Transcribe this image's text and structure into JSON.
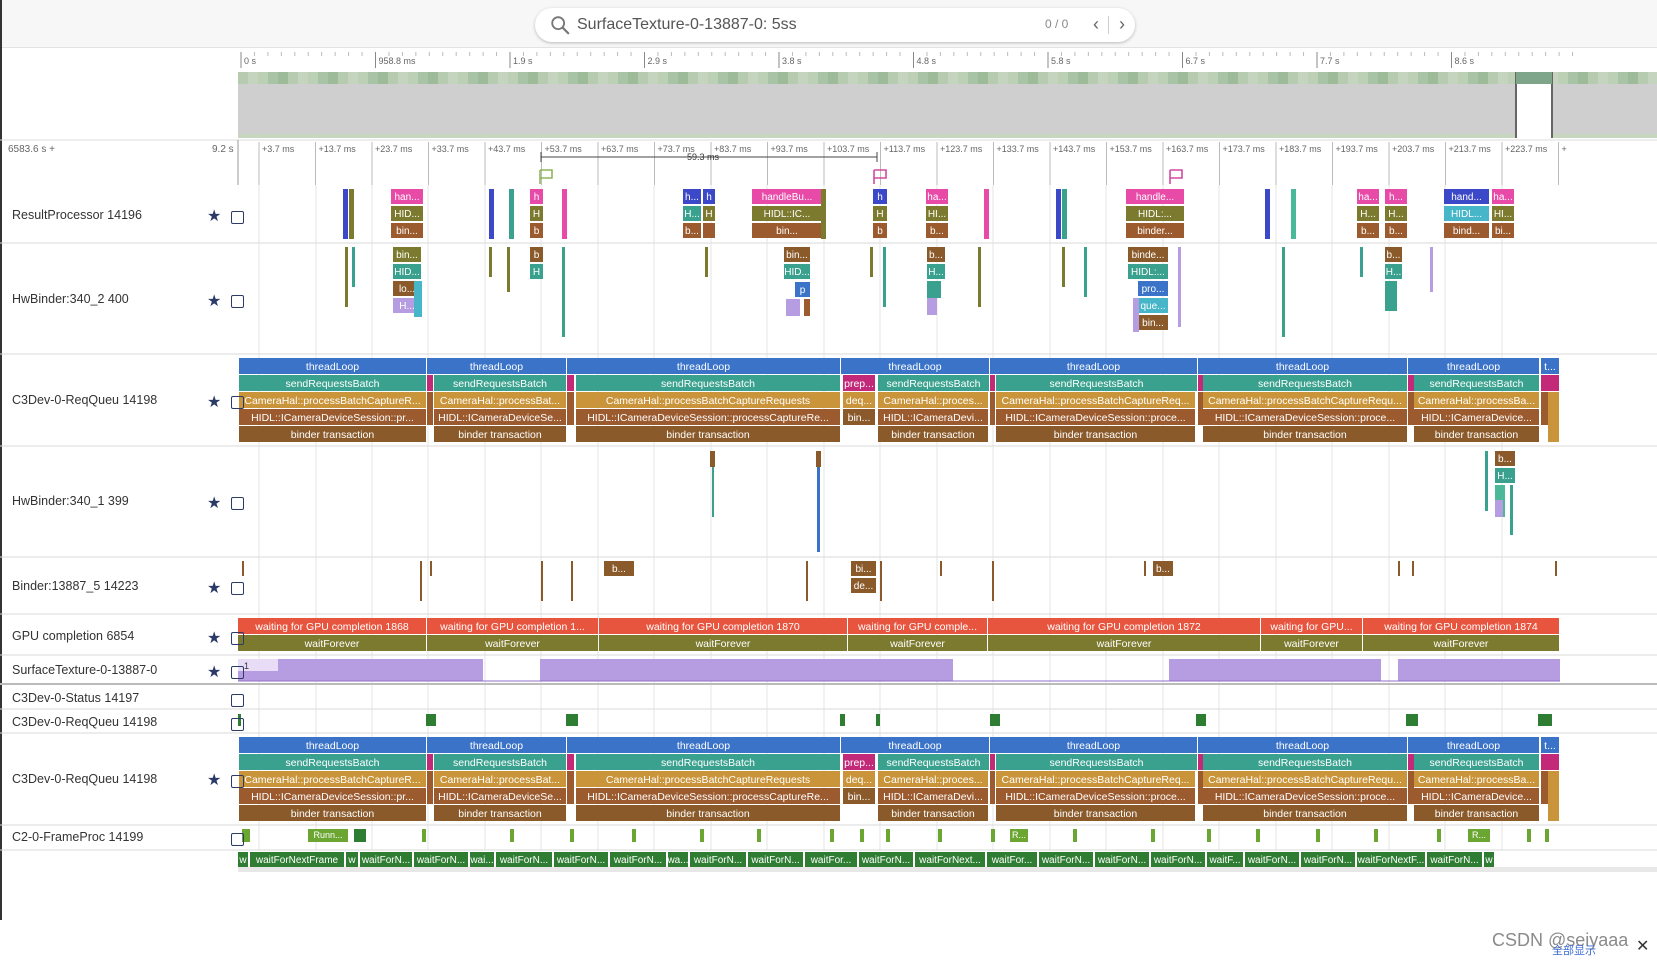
{
  "search": {
    "value": "SurfaceTexture-0-13887-0: 5ss",
    "count": "0 / 0"
  },
  "overview": {
    "ticks": [
      "0 s",
      "958.8 ms",
      "1.9 s",
      "2.9 s",
      "3.8 s",
      "4.8 s",
      "5.8 s",
      "6.7 s",
      "7.7 s",
      "8.6 s"
    ]
  },
  "timeaxis": {
    "left_label": "6583.6 s +",
    "right_label": "9.2 s",
    "ticks": [
      "+3.7 ms",
      "+13.7 ms",
      "+23.7 ms",
      "+33.7 ms",
      "+43.7 ms",
      "+53.7 ms",
      "+63.7 ms",
      "+73.7 ms",
      "+83.7 ms",
      "+93.7 ms",
      "+103.7 ms",
      "+113.7 ms",
      "+123.7 ms",
      "+133.7 ms",
      "+143.7 ms",
      "+153.7 ms",
      "+163.7 ms",
      "+173.7 ms",
      "+183.7 ms",
      "+193.7 ms",
      "+203.7 ms",
      "+213.7 ms",
      "+223.7 ms",
      "+"
    ],
    "measure": "59.3 ms"
  },
  "tracks": [
    {
      "name": "ResultProcessor 14196",
      "starred": true
    },
    {
      "name": "HwBinder:340_2 400",
      "starred": true
    },
    {
      "name": "C3Dev-0-ReqQueu 14198",
      "starred": true
    },
    {
      "name": "HwBinder:340_1 399",
      "starred": true
    },
    {
      "name": "Binder:13887_5 14223",
      "starred": true
    },
    {
      "name": "GPU completion 6854",
      "starred": true
    },
    {
      "name": "SurfaceTexture-0-13887-0",
      "starred": true
    },
    {
      "name": "C3Dev-0-Status 14197",
      "starred": false
    },
    {
      "name": "C3Dev-0-ReqQueu 14198",
      "starred": false
    },
    {
      "name": "C3Dev-0-ReqQueu 14198",
      "starred": true
    },
    {
      "name": "C2-0-FrameProc 14199",
      "starred": false
    }
  ],
  "counter_value": "1",
  "slices": {
    "thread_loop": "threadLoop",
    "send_requests": "sendRequestsBatch",
    "prep": "prep...",
    "deq": "deq...",
    "bin_short": "bin...",
    "camera_hal": [
      "CameraHal::processBatchCaptureR...",
      "CameraHal::processBat...",
      "CameraHal::processBatchCaptureRequests",
      "CameraHal::proces...",
      "CameraHal::processBatchCaptureReq...",
      "CameraHal::processBatchCaptureRequ...",
      "CameraHal::processBa..."
    ],
    "hidl": [
      "HIDL::ICameraDeviceSession::pr...",
      "HIDL::ICameraDeviceSe...",
      "HIDL::ICameraDeviceSession::processCaptureRe...",
      "HIDL::ICameraDevi...",
      "HIDL::ICameraDeviceSession::proce...",
      "HIDL::ICameraDeviceSession::proce...",
      "HIDL::ICameraDevice..."
    ],
    "binder_txn": "binder transaction",
    "gpu_wait": [
      "waiting for GPU completion 1868",
      "waiting for GPU completion 1...",
      "waiting for GPU completion 1870",
      "waiting for GPU comple...",
      "waiting for GPU completion 1872",
      "waiting for GPU...",
      "waiting for GPU completion 1874"
    ],
    "wait_forever": "waitForever",
    "frame_proc": [
      "w",
      "waitForNextFrame",
      "w",
      "waitForN...",
      "waitForN...",
      "wai...",
      "waitForN...",
      "waitForN...",
      "waitForN...",
      "wa...",
      "waitForN...",
      "waitForN...",
      "waitFor...",
      "waitForN...",
      "waitForNext...",
      "waitFor...",
      "waitForN...",
      "waitForN...",
      "waitForN...",
      "waitF...",
      "waitForN...",
      "waitForN...",
      "waitForNextF...",
      "waitForN...",
      "w"
    ],
    "runn": "Runn...",
    "r": "R...",
    "rp": [
      "han...",
      "HID...",
      "bin...",
      "h",
      "H",
      "b",
      "h...",
      "H...",
      "b...",
      "handleBu...",
      "HIDL::IC...",
      "bin...",
      "ha...",
      "HI...",
      "b...",
      "handle...",
      "HIDL:...",
      "binder...",
      "ha...",
      "H...",
      "b...",
      "h...",
      "H...",
      "hand...",
      "HIDL...",
      "bind...",
      "ha...",
      "HI...",
      "bi..."
    ],
    "hw2": [
      "bin...",
      "HID...",
      "lo...",
      "H...",
      "b",
      "H",
      "bin...",
      "HID...",
      "p",
      "b...",
      "H...",
      "binde...",
      "HIDL:...",
      "pro...",
      "que...",
      "bin...",
      "b...",
      "H..."
    ],
    "hw1": [
      "b...",
      "H..."
    ],
    "binder": [
      "b...",
      "bi...",
      "de...",
      "b..."
    ]
  },
  "watermark": "CSDN @seiyaaa",
  "watermark_sub": "全部显示"
}
